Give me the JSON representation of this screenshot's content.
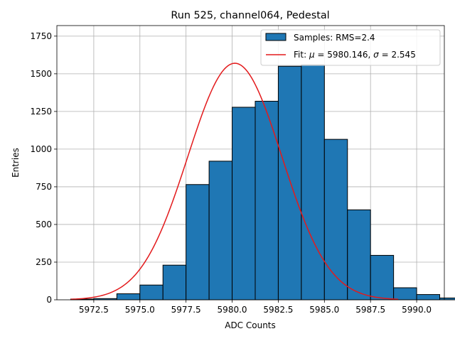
{
  "chart_data": {
    "type": "bar",
    "title": "Run 525, channel064, Pedestal",
    "xlabel": "ADC Counts",
    "ylabel": "Entries",
    "xlim": [
      5970.5,
      5991.5
    ],
    "ylim": [
      0,
      1820
    ],
    "grid": true,
    "legend_position": "top-right",
    "xticks": [
      5972.5,
      5975.0,
      5977.5,
      5980.0,
      5982.5,
      5985.0,
      5987.5,
      5990.0
    ],
    "xtick_labels": [
      "5972.5",
      "5975.0",
      "5977.5",
      "5980.0",
      "5982.5",
      "5985.0",
      "5987.5",
      "5990.0"
    ],
    "yticks": [
      0,
      250,
      500,
      750,
      1000,
      1250,
      1500,
      1750
    ],
    "ytick_labels": [
      "0",
      "250",
      "500",
      "750",
      "1000",
      "1250",
      "1500",
      "1750"
    ],
    "bin_width": 1.25,
    "bins": [
      {
        "start": 5971.25,
        "value": 5
      },
      {
        "start": 5972.5,
        "value": 8
      },
      {
        "start": 5973.75,
        "value": 40
      },
      {
        "start": 5975.0,
        "value": 98
      },
      {
        "start": 5976.25,
        "value": 230
      },
      {
        "start": 5977.5,
        "value": 765
      },
      {
        "start": 5978.75,
        "value": 920
      },
      {
        "start": 5980.0,
        "value": 1278
      },
      {
        "start": 5981.25,
        "value": 1318
      },
      {
        "start": 5982.5,
        "value": 1550
      },
      {
        "start": 5983.75,
        "value": 1560
      },
      {
        "start": 5985.0,
        "value": 1065
      },
      {
        "start": 5986.25,
        "value": 597
      },
      {
        "start": 5987.5,
        "value": 295
      },
      {
        "start": 5988.75,
        "value": 80
      },
      {
        "start": 5990.0,
        "value": 35
      },
      {
        "start": 5991.25,
        "value": 12
      }
    ],
    "fit": {
      "mu": 5980.146,
      "sigma": 2.545,
      "amplitude": 1570,
      "x_range": [
        5971.25,
        5989.0
      ]
    },
    "series": [
      {
        "name": "Samples: RMS=2.4",
        "kind": "histogram",
        "color": "#1f77b4"
      },
      {
        "name_prefix": "Fit: ",
        "mu_label": "5980.146",
        "sigma_label": "2.545",
        "kind": "line",
        "color": "#e31a1c"
      }
    ]
  }
}
